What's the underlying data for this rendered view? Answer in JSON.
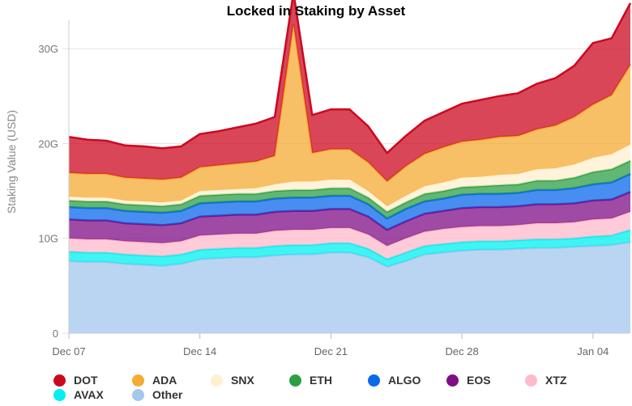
{
  "chart_data": {
    "type": "area",
    "stacked": true,
    "title": "Locked in Staking by Asset",
    "xlabel": "",
    "ylabel": "Staking Value (USD)",
    "ylim": [
      0,
      33
    ],
    "y_ticks": [
      0,
      10,
      20,
      30
    ],
    "y_tick_labels": [
      "0",
      "10G",
      "20G",
      "30G"
    ],
    "x_range": [
      "2020-12-07",
      "2021-01-06"
    ],
    "x_ticks": [
      {
        "date": "2020-12-07",
        "label": "Dec 07"
      },
      {
        "date": "2020-12-14",
        "label": "Dec 14"
      },
      {
        "date": "2020-12-21",
        "label": "Dec 21"
      },
      {
        "date": "2020-12-28",
        "label": "Dec 28"
      },
      {
        "date": "2021-01-04",
        "label": "Jan 04"
      }
    ],
    "grid": "horizontal",
    "legend": "bottom",
    "x": [
      "2020-12-07",
      "2020-12-08",
      "2020-12-09",
      "2020-12-10",
      "2020-12-11",
      "2020-12-12",
      "2020-12-13",
      "2020-12-14",
      "2020-12-15",
      "2020-12-16",
      "2020-12-17",
      "2020-12-18",
      "2020-12-19",
      "2020-12-20",
      "2020-12-21",
      "2020-12-22",
      "2020-12-23",
      "2020-12-24",
      "2020-12-25",
      "2020-12-26",
      "2020-12-27",
      "2020-12-28",
      "2020-12-29",
      "2020-12-30",
      "2020-12-31",
      "2021-01-01",
      "2021-01-02",
      "2021-01-03",
      "2021-01-04",
      "2021-01-05",
      "2021-01-06"
    ],
    "series": [
      {
        "name": "Other",
        "color": "#a3c7ee",
        "values": [
          7.6,
          7.5,
          7.5,
          7.3,
          7.2,
          7.1,
          7.3,
          7.8,
          7.9,
          8.0,
          8.0,
          8.2,
          8.3,
          8.3,
          8.5,
          8.5,
          8.0,
          7.0,
          7.6,
          8.3,
          8.5,
          8.7,
          8.8,
          8.8,
          8.9,
          9.0,
          9.0,
          9.1,
          9.2,
          9.3,
          9.6
        ]
      },
      {
        "name": "AVAX",
        "color": "#00f0f0",
        "values": [
          1.0,
          1.0,
          1.0,
          1.0,
          1.0,
          1.0,
          1.0,
          1.0,
          1.0,
          1.0,
          1.0,
          1.0,
          1.0,
          1.0,
          1.0,
          1.0,
          0.9,
          0.8,
          0.9,
          0.9,
          0.9,
          0.9,
          0.9,
          0.9,
          0.9,
          0.9,
          0.9,
          0.9,
          1.0,
          1.0,
          1.3
        ]
      },
      {
        "name": "XTZ",
        "color": "#ffbacb",
        "values": [
          1.4,
          1.4,
          1.4,
          1.4,
          1.4,
          1.4,
          1.4,
          1.5,
          1.5,
          1.5,
          1.5,
          1.6,
          1.6,
          1.6,
          1.6,
          1.6,
          1.5,
          1.4,
          1.5,
          1.5,
          1.6,
          1.6,
          1.6,
          1.6,
          1.6,
          1.7,
          1.7,
          1.7,
          1.8,
          1.8,
          1.9
        ]
      },
      {
        "name": "EOS",
        "color": "#7f0d86",
        "values": [
          2.0,
          2.0,
          2.0,
          1.9,
          1.9,
          1.9,
          1.9,
          2.0,
          2.0,
          2.0,
          2.0,
          2.0,
          2.0,
          2.0,
          2.0,
          2.0,
          1.9,
          1.7,
          1.8,
          1.9,
          1.9,
          2.0,
          2.0,
          2.0,
          2.0,
          2.0,
          2.0,
          2.0,
          2.0,
          2.0,
          2.1
        ]
      },
      {
        "name": "ALGO",
        "color": "#0a68eb",
        "values": [
          1.3,
          1.3,
          1.3,
          1.3,
          1.3,
          1.3,
          1.3,
          1.4,
          1.4,
          1.4,
          1.4,
          1.4,
          1.4,
          1.4,
          1.4,
          1.4,
          1.3,
          1.2,
          1.3,
          1.3,
          1.3,
          1.4,
          1.4,
          1.4,
          1.4,
          1.5,
          1.5,
          1.6,
          1.7,
          1.8,
          1.9
        ]
      },
      {
        "name": "ETH",
        "color": "#2c9f44",
        "values": [
          0.7,
          0.7,
          0.7,
          0.7,
          0.7,
          0.7,
          0.7,
          0.8,
          0.8,
          0.8,
          0.8,
          0.8,
          0.8,
          0.8,
          0.8,
          0.8,
          0.7,
          0.7,
          0.7,
          0.8,
          0.8,
          0.8,
          0.8,
          0.9,
          0.9,
          1.0,
          1.0,
          1.1,
          1.3,
          1.4,
          1.4
        ]
      },
      {
        "name": "SNX",
        "color": "#fff0cf",
        "values": [
          0.4,
          0.4,
          0.4,
          0.4,
          0.4,
          0.4,
          0.4,
          0.5,
          0.5,
          0.5,
          0.6,
          0.7,
          0.9,
          0.9,
          0.9,
          0.9,
          0.7,
          0.6,
          0.7,
          0.8,
          0.9,
          1.0,
          1.0,
          1.1,
          1.1,
          1.2,
          1.3,
          1.4,
          1.5,
          1.6,
          1.7
        ]
      },
      {
        "name": "ADA",
        "color": "#f6ab33",
        "values": [
          2.5,
          2.5,
          2.5,
          2.4,
          2.4,
          2.4,
          2.4,
          2.5,
          2.6,
          2.7,
          2.8,
          3.0,
          16.5,
          3.0,
          3.2,
          3.2,
          3.0,
          2.6,
          3.1,
          3.4,
          3.7,
          3.8,
          3.9,
          4.0,
          4.0,
          4.2,
          4.5,
          5.0,
          5.6,
          6.2,
          8.4
        ]
      },
      {
        "name": "DOT",
        "color": "#cc0820",
        "values": [
          3.8,
          3.6,
          3.5,
          3.4,
          3.4,
          3.3,
          3.3,
          3.5,
          3.6,
          3.8,
          4.0,
          4.1,
          3.4,
          4.0,
          4.2,
          4.2,
          3.8,
          3.0,
          3.2,
          3.5,
          3.7,
          4.0,
          4.2,
          4.3,
          4.5,
          4.8,
          5.0,
          5.4,
          6.5,
          6.0,
          6.5
        ]
      }
    ],
    "legend_order": [
      "DOT",
      "ADA",
      "SNX",
      "ETH",
      "ALGO",
      "EOS",
      "XTZ",
      "AVAX",
      "Other"
    ]
  }
}
